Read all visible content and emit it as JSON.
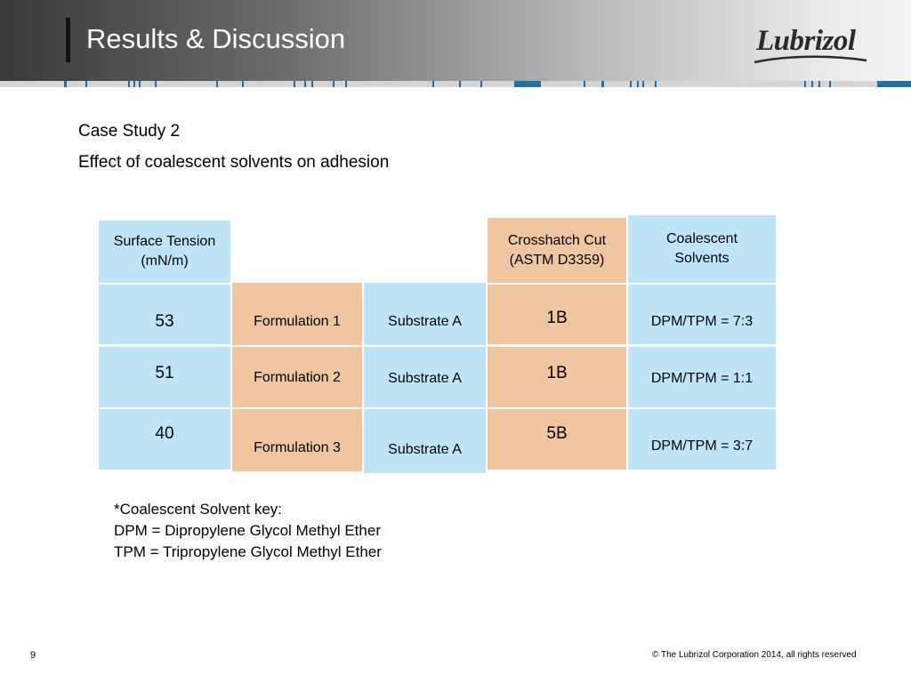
{
  "header": {
    "title": "Results & Discussion",
    "logo_text": "Lubrizol"
  },
  "content": {
    "case_study": "Case Study 2",
    "subtitle": "Effect of coalescent solvents on adhesion"
  },
  "table": {
    "headers": {
      "surface_tension": "Surface Tension (mN/m)",
      "crosshatch": "Crosshatch Cut (ASTM D3359)",
      "coalescent": "Coalescent Solvents"
    },
    "rows": [
      {
        "surface_tension": "53",
        "formulation": "Formulation 1",
        "substrate": "Substrate A",
        "crosshatch": "1B",
        "coalescent": "DPM/TPM = 7:3"
      },
      {
        "surface_tension": "51",
        "formulation": "Formulation 2",
        "substrate": "Substrate A",
        "crosshatch": "1B",
        "coalescent": "DPM/TPM = 1:1"
      },
      {
        "surface_tension": "40",
        "formulation": "Formulation 3",
        "substrate": "Substrate A",
        "crosshatch": "5B",
        "coalescent": "DPM/TPM = 3:7"
      }
    ]
  },
  "footnote": {
    "line1": "*Coalescent Solvent key:",
    "line2": "DPM = Dipropylene Glycol Methyl Ether",
    "line3": "TPM = Tripropylene Glycol Methyl Ether"
  },
  "footer": {
    "page": "9",
    "copyright": "© The Lubrizol Corporation 2014, all rights reserved"
  },
  "colors": {
    "blue_cell": "#bee5f7",
    "peach_cell": "#f0c6a1",
    "strip_accent": "#1f7fb8"
  }
}
